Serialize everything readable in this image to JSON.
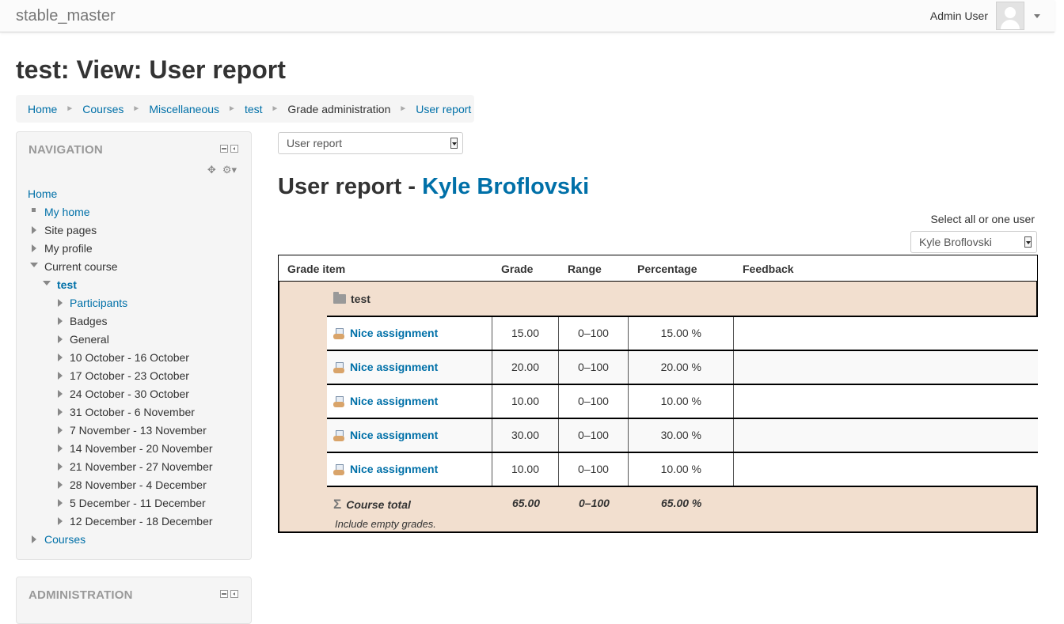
{
  "navbar": {
    "brand": "stable_master",
    "user_name": "Admin User"
  },
  "page_title": "test: View: User report",
  "breadcrumb": [
    {
      "label": "Home"
    },
    {
      "label": "Courses"
    },
    {
      "label": "Miscellaneous"
    },
    {
      "label": "test"
    },
    {
      "label": "Grade administration"
    },
    {
      "label": "User report"
    }
  ],
  "navigation": {
    "title": "NAVIGATION",
    "items": [
      {
        "label": "Home"
      },
      {
        "label": "My home"
      },
      {
        "label": "Site pages"
      },
      {
        "label": "My profile"
      },
      {
        "label": "Current course"
      },
      {
        "label": "test"
      },
      {
        "label": "Participants"
      },
      {
        "label": "Badges"
      },
      {
        "label": "General"
      },
      {
        "label": "10 October - 16 October"
      },
      {
        "label": "17 October - 23 October"
      },
      {
        "label": "24 October - 30 October"
      },
      {
        "label": "31 October - 6 November"
      },
      {
        "label": "7 November - 13 November"
      },
      {
        "label": "14 November - 20 November"
      },
      {
        "label": "21 November - 27 November"
      },
      {
        "label": "28 November - 4 December"
      },
      {
        "label": "5 December - 11 December"
      },
      {
        "label": "12 December - 18 December"
      },
      {
        "label": "Courses"
      }
    ]
  },
  "administration": {
    "title": "ADMINISTRATION"
  },
  "report_selector": {
    "value": "User report"
  },
  "report": {
    "heading_prefix": "User report - ",
    "student_name": "Kyle Broflovski",
    "select_label": "Select all or one user",
    "user_select_value": "Kyle Broflovski"
  },
  "grade_table": {
    "headers": [
      "Grade item",
      "Grade",
      "Range",
      "Percentage",
      "Feedback"
    ],
    "category": "test",
    "items": [
      {
        "name": "Nice assignment",
        "grade": "15.00",
        "range": "0–100",
        "percentage": "15.00 %",
        "feedback": ""
      },
      {
        "name": "Nice assignment",
        "grade": "20.00",
        "range": "0–100",
        "percentage": "20.00 %",
        "feedback": ""
      },
      {
        "name": "Nice assignment",
        "grade": "10.00",
        "range": "0–100",
        "percentage": "10.00 %",
        "feedback": ""
      },
      {
        "name": "Nice assignment",
        "grade": "30.00",
        "range": "0–100",
        "percentage": "30.00 %",
        "feedback": ""
      },
      {
        "name": "Nice assignment",
        "grade": "10.00",
        "range": "0–100",
        "percentage": "10.00 %",
        "feedback": ""
      }
    ],
    "total": {
      "label": "Course total",
      "grade": "65.00",
      "range": "0–100",
      "percentage": "65.00 %",
      "note": "Include empty grades."
    }
  }
}
